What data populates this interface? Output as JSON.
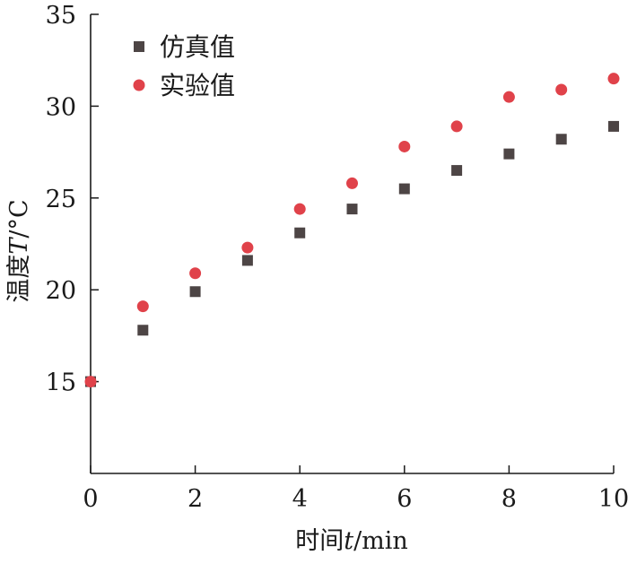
{
  "chart_data": {
    "type": "scatter",
    "title": "",
    "xlabel_prefix": "时间",
    "xlabel_var": "t",
    "xlabel_unit": "/min",
    "ylabel_prefix": "温度",
    "ylabel_var": "T",
    "ylabel_unit": "/°C",
    "xlim": [
      0,
      10
    ],
    "ylim": [
      10,
      35
    ],
    "x_ticks": [
      0,
      2,
      4,
      6,
      8,
      10
    ],
    "y_ticks": [
      15,
      20,
      25,
      30,
      35
    ],
    "grid": false,
    "legend_position": "top-left",
    "series": [
      {
        "name": "仿真值",
        "marker": "square",
        "color": "#4d4545",
        "x": [
          0,
          1,
          2,
          3,
          4,
          5,
          6,
          7,
          8,
          9,
          10
        ],
        "y": [
          15.0,
          17.8,
          19.9,
          21.6,
          23.1,
          24.4,
          25.5,
          26.5,
          27.4,
          28.2,
          28.9
        ]
      },
      {
        "name": "实验值",
        "marker": "circle",
        "color": "#e0424a",
        "x": [
          0,
          1,
          2,
          3,
          4,
          5,
          6,
          7,
          8,
          9,
          10
        ],
        "y": [
          15.0,
          19.1,
          20.9,
          22.3,
          24.4,
          25.8,
          27.8,
          28.9,
          30.5,
          30.9,
          31.5
        ]
      }
    ]
  }
}
